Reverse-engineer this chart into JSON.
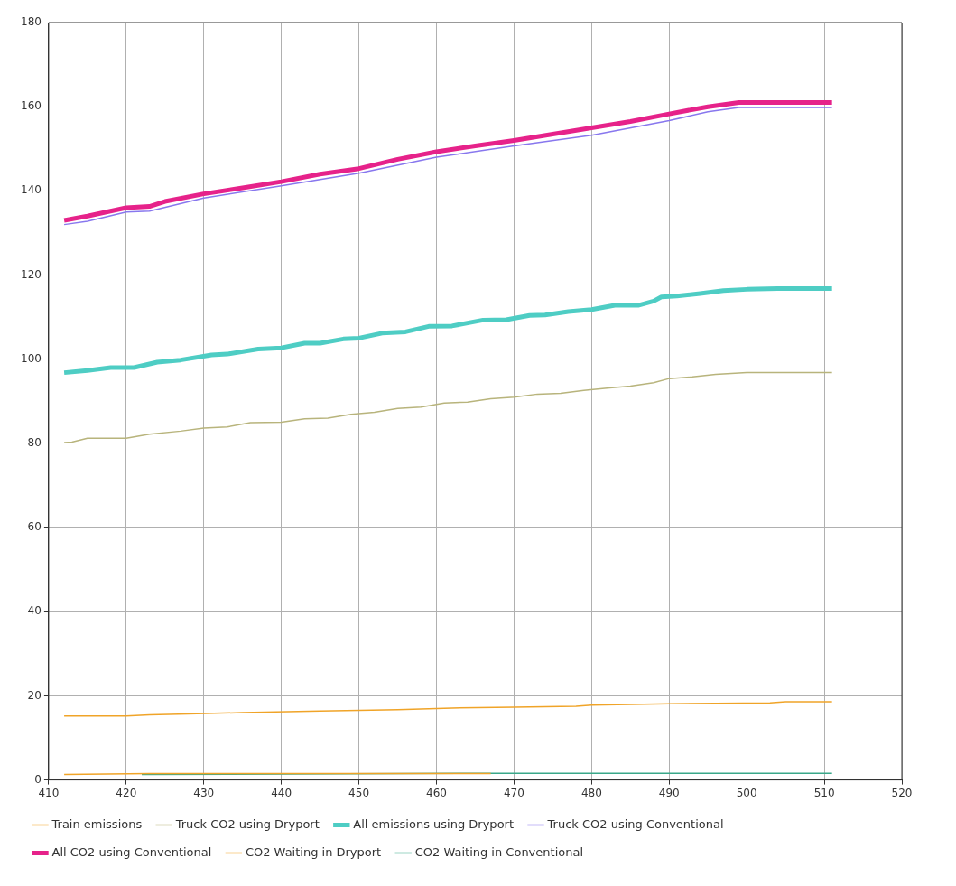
{
  "chart_data": {
    "type": "line",
    "xlim": [
      410,
      520
    ],
    "xticks": [
      410,
      420,
      430,
      440,
      450,
      460,
      470,
      480,
      490,
      500,
      510,
      520
    ],
    "ylim": [
      0,
      180
    ],
    "yticks": [
      0,
      20,
      40,
      60,
      80,
      100,
      120,
      140,
      160,
      180
    ],
    "grid": true,
    "legend": "bottom",
    "marker": "none",
    "line_style": "solid",
    "series": [
      {
        "name": "Train emissions",
        "color": "#f0a428",
        "x": [
          412,
          420,
          423,
          428,
          435,
          445,
          455,
          462,
          470,
          478,
          480,
          490,
          503,
          505,
          511
        ],
        "values": [
          15.2,
          15.2,
          15.5,
          15.7,
          16,
          16.4,
          16.7,
          17.1,
          17.3,
          17.5,
          17.8,
          18.1,
          18.3,
          18.6,
          18.6
        ]
      },
      {
        "name": "Truck CO2 using Dryport",
        "color": "#b8b47c",
        "x": [
          412,
          413,
          415,
          420,
          423,
          427,
          430,
          433,
          436,
          440,
          443,
          446,
          449,
          452,
          455,
          458,
          461,
          464,
          467,
          470,
          473,
          476,
          479,
          482,
          485,
          488,
          490,
          493,
          496,
          500,
          511
        ],
        "values": [
          80.2,
          80.3,
          81.2,
          81.2,
          82.2,
          82.9,
          83.6,
          83.9,
          84.9,
          85,
          85.8,
          86,
          86.9,
          87.4,
          88.3,
          88.6,
          89.6,
          89.8,
          90.6,
          91,
          91.7,
          91.9,
          92.6,
          93.1,
          93.6,
          94.4,
          95.4,
          95.8,
          96.4,
          96.8,
          96.8
        ]
      },
      {
        "name": "All emissions using Dryport",
        "color": "#4ecdc4",
        "x": [
          412,
          415,
          418,
          421,
          424,
          427,
          431,
          433,
          437,
          440,
          443,
          445,
          448,
          450,
          453,
          456,
          459,
          462,
          466,
          469,
          472,
          474,
          477,
          480,
          483,
          486,
          488,
          489,
          491,
          494,
          497,
          500,
          504,
          511
        ],
        "values": [
          96.8,
          97.3,
          98,
          98,
          99.3,
          99.8,
          101,
          101.2,
          102.4,
          102.7,
          103.8,
          103.8,
          104.8,
          105,
          106.2,
          106.5,
          107.8,
          107.9,
          109.3,
          109.4,
          110.4,
          110.5,
          111.3,
          111.8,
          112.8,
          112.8,
          113.8,
          114.8,
          115,
          115.6,
          116.3,
          116.6,
          116.8,
          116.8
        ]
      },
      {
        "name": "Truck CO2 using Conventional",
        "color": "#8877ee",
        "x": [
          412,
          415,
          420,
          423,
          430,
          440,
          450,
          460,
          470,
          480,
          490,
          495,
          499,
          511
        ],
        "values": [
          132,
          132.8,
          135,
          135.2,
          138.3,
          141.2,
          144.2,
          148,
          150.7,
          153.2,
          156.7,
          158.8,
          159.8,
          159.8
        ]
      },
      {
        "name": "All CO2 using Conventional",
        "color": "#e6228a",
        "x": [
          412,
          415,
          420,
          423,
          425,
          430,
          435,
          440,
          445,
          450,
          455,
          460,
          465,
          470,
          475,
          480,
          485,
          490,
          495,
          499,
          511
        ],
        "values": [
          133,
          134,
          136,
          136.3,
          137.5,
          139.3,
          140.7,
          142.2,
          144,
          145.3,
          147.5,
          149.3,
          150.7,
          152,
          153.5,
          155,
          156.5,
          158.3,
          160,
          161,
          161
        ]
      },
      {
        "name": "CO2 Waiting in Dryport",
        "color": "#f0a428",
        "x": [
          412,
          423,
          467
        ],
        "values": [
          1.3,
          1.5,
          1.5
        ]
      },
      {
        "name": "CO2 Waiting in Conventional",
        "color": "#3aa88a",
        "x": [
          422,
          468,
          511
        ],
        "values": [
          1.3,
          1.6,
          1.6
        ]
      }
    ]
  }
}
